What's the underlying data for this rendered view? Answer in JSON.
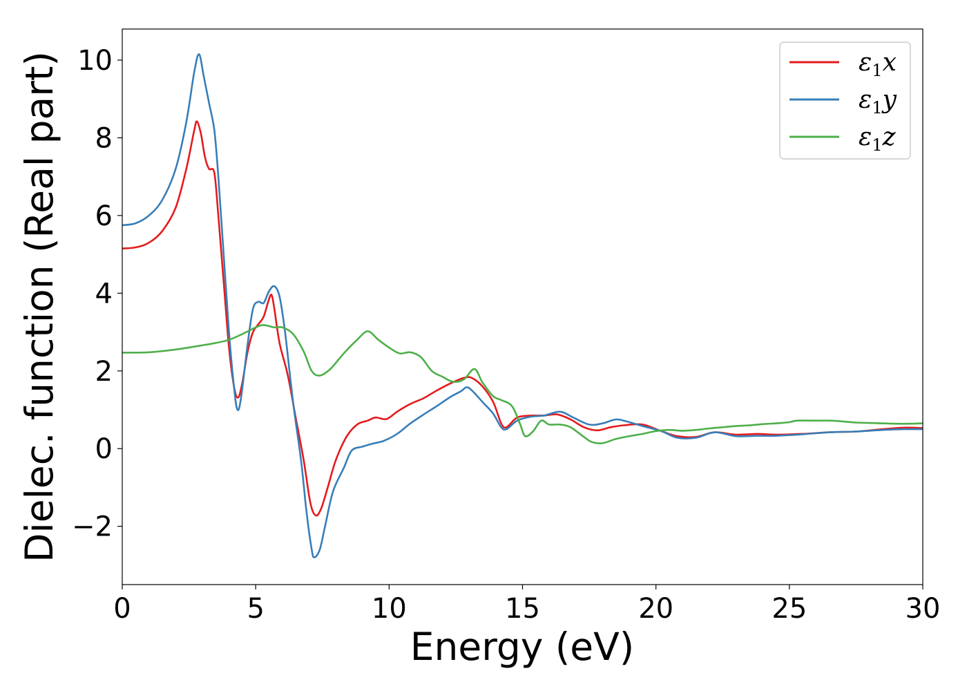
{
  "chart_data": {
    "type": "line",
    "xlabel": "Energy (eV)",
    "ylabel": "Dielec. function (Real part)",
    "xlim": [
      0,
      30
    ],
    "ylim": [
      -3.5,
      10.8
    ],
    "xticks": [
      0,
      5,
      10,
      15,
      20,
      25,
      30
    ],
    "yticks": [
      -2,
      0,
      2,
      4,
      6,
      8,
      10
    ],
    "xtick_labels": [
      "0",
      "5",
      "10",
      "15",
      "20",
      "25",
      "30"
    ],
    "ytick_labels": [
      "−2",
      "0",
      "2",
      "4",
      "6",
      "8",
      "10"
    ],
    "grid": false,
    "legend_position": "top-right",
    "series": [
      {
        "name": "ε₁x",
        "legend_main": "ε",
        "legend_sub": "1",
        "legend_var": "x",
        "color": "#e41a1c",
        "points": [
          [
            0,
            5.15
          ],
          [
            0.5,
            5.18
          ],
          [
            1.0,
            5.3
          ],
          [
            1.5,
            5.6
          ],
          [
            2.0,
            6.2
          ],
          [
            2.4,
            7.2
          ],
          [
            2.7,
            8.2
          ],
          [
            2.8,
            8.42
          ],
          [
            2.95,
            8.1
          ],
          [
            3.1,
            7.5
          ],
          [
            3.25,
            7.2
          ],
          [
            3.45,
            7.1
          ],
          [
            3.6,
            6.0
          ],
          [
            3.8,
            4.3
          ],
          [
            4.0,
            2.6
          ],
          [
            4.2,
            1.55
          ],
          [
            4.35,
            1.32
          ],
          [
            4.5,
            1.7
          ],
          [
            4.7,
            2.5
          ],
          [
            4.9,
            3.0
          ],
          [
            5.1,
            3.2
          ],
          [
            5.3,
            3.4
          ],
          [
            5.5,
            3.85
          ],
          [
            5.6,
            3.95
          ],
          [
            5.7,
            3.6
          ],
          [
            5.9,
            2.7
          ],
          [
            6.2,
            1.9
          ],
          [
            6.5,
            0.8
          ],
          [
            6.8,
            -0.3
          ],
          [
            7.05,
            -1.4
          ],
          [
            7.25,
            -1.72
          ],
          [
            7.45,
            -1.55
          ],
          [
            7.7,
            -1.0
          ],
          [
            8.0,
            -0.3
          ],
          [
            8.4,
            0.3
          ],
          [
            8.8,
            0.62
          ],
          [
            9.2,
            0.72
          ],
          [
            9.5,
            0.8
          ],
          [
            9.9,
            0.76
          ],
          [
            10.3,
            0.95
          ],
          [
            10.8,
            1.15
          ],
          [
            11.3,
            1.3
          ],
          [
            11.8,
            1.5
          ],
          [
            12.3,
            1.68
          ],
          [
            12.8,
            1.82
          ],
          [
            13.1,
            1.82
          ],
          [
            13.5,
            1.6
          ],
          [
            13.9,
            1.2
          ],
          [
            14.2,
            0.65
          ],
          [
            14.4,
            0.55
          ],
          [
            14.8,
            0.8
          ],
          [
            15.3,
            0.85
          ],
          [
            15.8,
            0.85
          ],
          [
            16.3,
            0.88
          ],
          [
            16.8,
            0.75
          ],
          [
            17.3,
            0.55
          ],
          [
            17.8,
            0.47
          ],
          [
            18.3,
            0.55
          ],
          [
            18.8,
            0.6
          ],
          [
            19.5,
            0.62
          ],
          [
            20.2,
            0.45
          ],
          [
            20.8,
            0.32
          ],
          [
            21.5,
            0.3
          ],
          [
            22.2,
            0.42
          ],
          [
            23.0,
            0.36
          ],
          [
            23.8,
            0.38
          ],
          [
            24.5,
            0.36
          ],
          [
            25.5,
            0.38
          ],
          [
            26.5,
            0.42
          ],
          [
            27.5,
            0.44
          ],
          [
            28.5,
            0.5
          ],
          [
            29.3,
            0.54
          ],
          [
            30.0,
            0.53
          ]
        ]
      },
      {
        "name": "ε₁y",
        "legend_main": "ε",
        "legend_sub": "1",
        "legend_var": "y",
        "color": "#377eb8",
        "points": [
          [
            0,
            5.75
          ],
          [
            0.5,
            5.8
          ],
          [
            1.0,
            6.0
          ],
          [
            1.5,
            6.4
          ],
          [
            2.0,
            7.2
          ],
          [
            2.4,
            8.4
          ],
          [
            2.7,
            9.7
          ],
          [
            2.88,
            10.15
          ],
          [
            3.05,
            9.6
          ],
          [
            3.25,
            8.9
          ],
          [
            3.45,
            8.2
          ],
          [
            3.6,
            7.0
          ],
          [
            3.8,
            5.0
          ],
          [
            4.0,
            3.0
          ],
          [
            4.2,
            1.5
          ],
          [
            4.32,
            1.0
          ],
          [
            4.45,
            1.3
          ],
          [
            4.7,
            2.7
          ],
          [
            4.9,
            3.6
          ],
          [
            5.1,
            3.78
          ],
          [
            5.3,
            3.75
          ],
          [
            5.5,
            4.05
          ],
          [
            5.7,
            4.18
          ],
          [
            5.9,
            3.9
          ],
          [
            6.1,
            3.0
          ],
          [
            6.4,
            1.2
          ],
          [
            6.7,
            -0.3
          ],
          [
            6.9,
            -1.6
          ],
          [
            7.1,
            -2.6
          ],
          [
            7.2,
            -2.8
          ],
          [
            7.4,
            -2.6
          ],
          [
            7.6,
            -2.0
          ],
          [
            7.9,
            -1.1
          ],
          [
            8.3,
            -0.5
          ],
          [
            8.6,
            -0.05
          ],
          [
            9.0,
            0.05
          ],
          [
            9.4,
            0.13
          ],
          [
            9.8,
            0.2
          ],
          [
            10.3,
            0.38
          ],
          [
            10.8,
            0.65
          ],
          [
            11.3,
            0.88
          ],
          [
            11.8,
            1.1
          ],
          [
            12.3,
            1.33
          ],
          [
            12.7,
            1.48
          ],
          [
            12.9,
            1.58
          ],
          [
            13.1,
            1.5
          ],
          [
            13.5,
            1.2
          ],
          [
            13.9,
            0.9
          ],
          [
            14.2,
            0.55
          ],
          [
            14.4,
            0.5
          ],
          [
            14.8,
            0.72
          ],
          [
            15.3,
            0.82
          ],
          [
            15.8,
            0.85
          ],
          [
            16.4,
            0.95
          ],
          [
            16.9,
            0.8
          ],
          [
            17.5,
            0.62
          ],
          [
            18.0,
            0.65
          ],
          [
            18.5,
            0.75
          ],
          [
            18.9,
            0.7
          ],
          [
            19.5,
            0.58
          ],
          [
            20.2,
            0.45
          ],
          [
            20.8,
            0.28
          ],
          [
            21.5,
            0.28
          ],
          [
            22.2,
            0.42
          ],
          [
            23.0,
            0.32
          ],
          [
            23.8,
            0.33
          ],
          [
            24.5,
            0.33
          ],
          [
            25.5,
            0.37
          ],
          [
            26.5,
            0.42
          ],
          [
            27.5,
            0.44
          ],
          [
            28.5,
            0.48
          ],
          [
            29.3,
            0.5
          ],
          [
            30.0,
            0.5
          ]
        ]
      },
      {
        "name": "ε₁z",
        "legend_main": "ε",
        "legend_sub": "1",
        "legend_var": "z",
        "color": "#4daf4a",
        "points": [
          [
            0,
            2.47
          ],
          [
            1.0,
            2.48
          ],
          [
            2.0,
            2.55
          ],
          [
            3.0,
            2.66
          ],
          [
            3.5,
            2.72
          ],
          [
            4.0,
            2.8
          ],
          [
            4.5,
            2.95
          ],
          [
            5.0,
            3.12
          ],
          [
            5.3,
            3.18
          ],
          [
            5.7,
            3.12
          ],
          [
            6.0,
            3.12
          ],
          [
            6.4,
            2.95
          ],
          [
            6.8,
            2.5
          ],
          [
            7.1,
            2.0
          ],
          [
            7.4,
            1.88
          ],
          [
            7.8,
            2.05
          ],
          [
            8.3,
            2.45
          ],
          [
            8.8,
            2.8
          ],
          [
            9.2,
            3.02
          ],
          [
            9.6,
            2.8
          ],
          [
            10.0,
            2.6
          ],
          [
            10.4,
            2.45
          ],
          [
            10.8,
            2.48
          ],
          [
            11.2,
            2.35
          ],
          [
            11.6,
            2.0
          ],
          [
            12.0,
            1.85
          ],
          [
            12.4,
            1.72
          ],
          [
            12.8,
            1.78
          ],
          [
            13.2,
            2.05
          ],
          [
            13.5,
            1.7
          ],
          [
            13.9,
            1.35
          ],
          [
            14.2,
            1.25
          ],
          [
            14.6,
            1.1
          ],
          [
            14.9,
            0.65
          ],
          [
            15.1,
            0.32
          ],
          [
            15.4,
            0.45
          ],
          [
            15.7,
            0.72
          ],
          [
            16.0,
            0.62
          ],
          [
            16.4,
            0.62
          ],
          [
            16.8,
            0.55
          ],
          [
            17.3,
            0.3
          ],
          [
            17.6,
            0.17
          ],
          [
            18.0,
            0.14
          ],
          [
            18.5,
            0.25
          ],
          [
            19.0,
            0.32
          ],
          [
            19.5,
            0.38
          ],
          [
            20.0,
            0.45
          ],
          [
            20.5,
            0.48
          ],
          [
            21.0,
            0.46
          ],
          [
            21.5,
            0.48
          ],
          [
            22.0,
            0.52
          ],
          [
            22.5,
            0.55
          ],
          [
            23.0,
            0.58
          ],
          [
            23.5,
            0.6
          ],
          [
            24.0,
            0.63
          ],
          [
            24.5,
            0.65
          ],
          [
            25.0,
            0.68
          ],
          [
            25.3,
            0.72
          ],
          [
            26.0,
            0.72
          ],
          [
            26.5,
            0.72
          ],
          [
            27.0,
            0.7
          ],
          [
            27.5,
            0.67
          ],
          [
            28.0,
            0.66
          ],
          [
            28.5,
            0.65
          ],
          [
            29.0,
            0.64
          ],
          [
            29.5,
            0.64
          ],
          [
            30.0,
            0.65
          ]
        ]
      }
    ]
  }
}
